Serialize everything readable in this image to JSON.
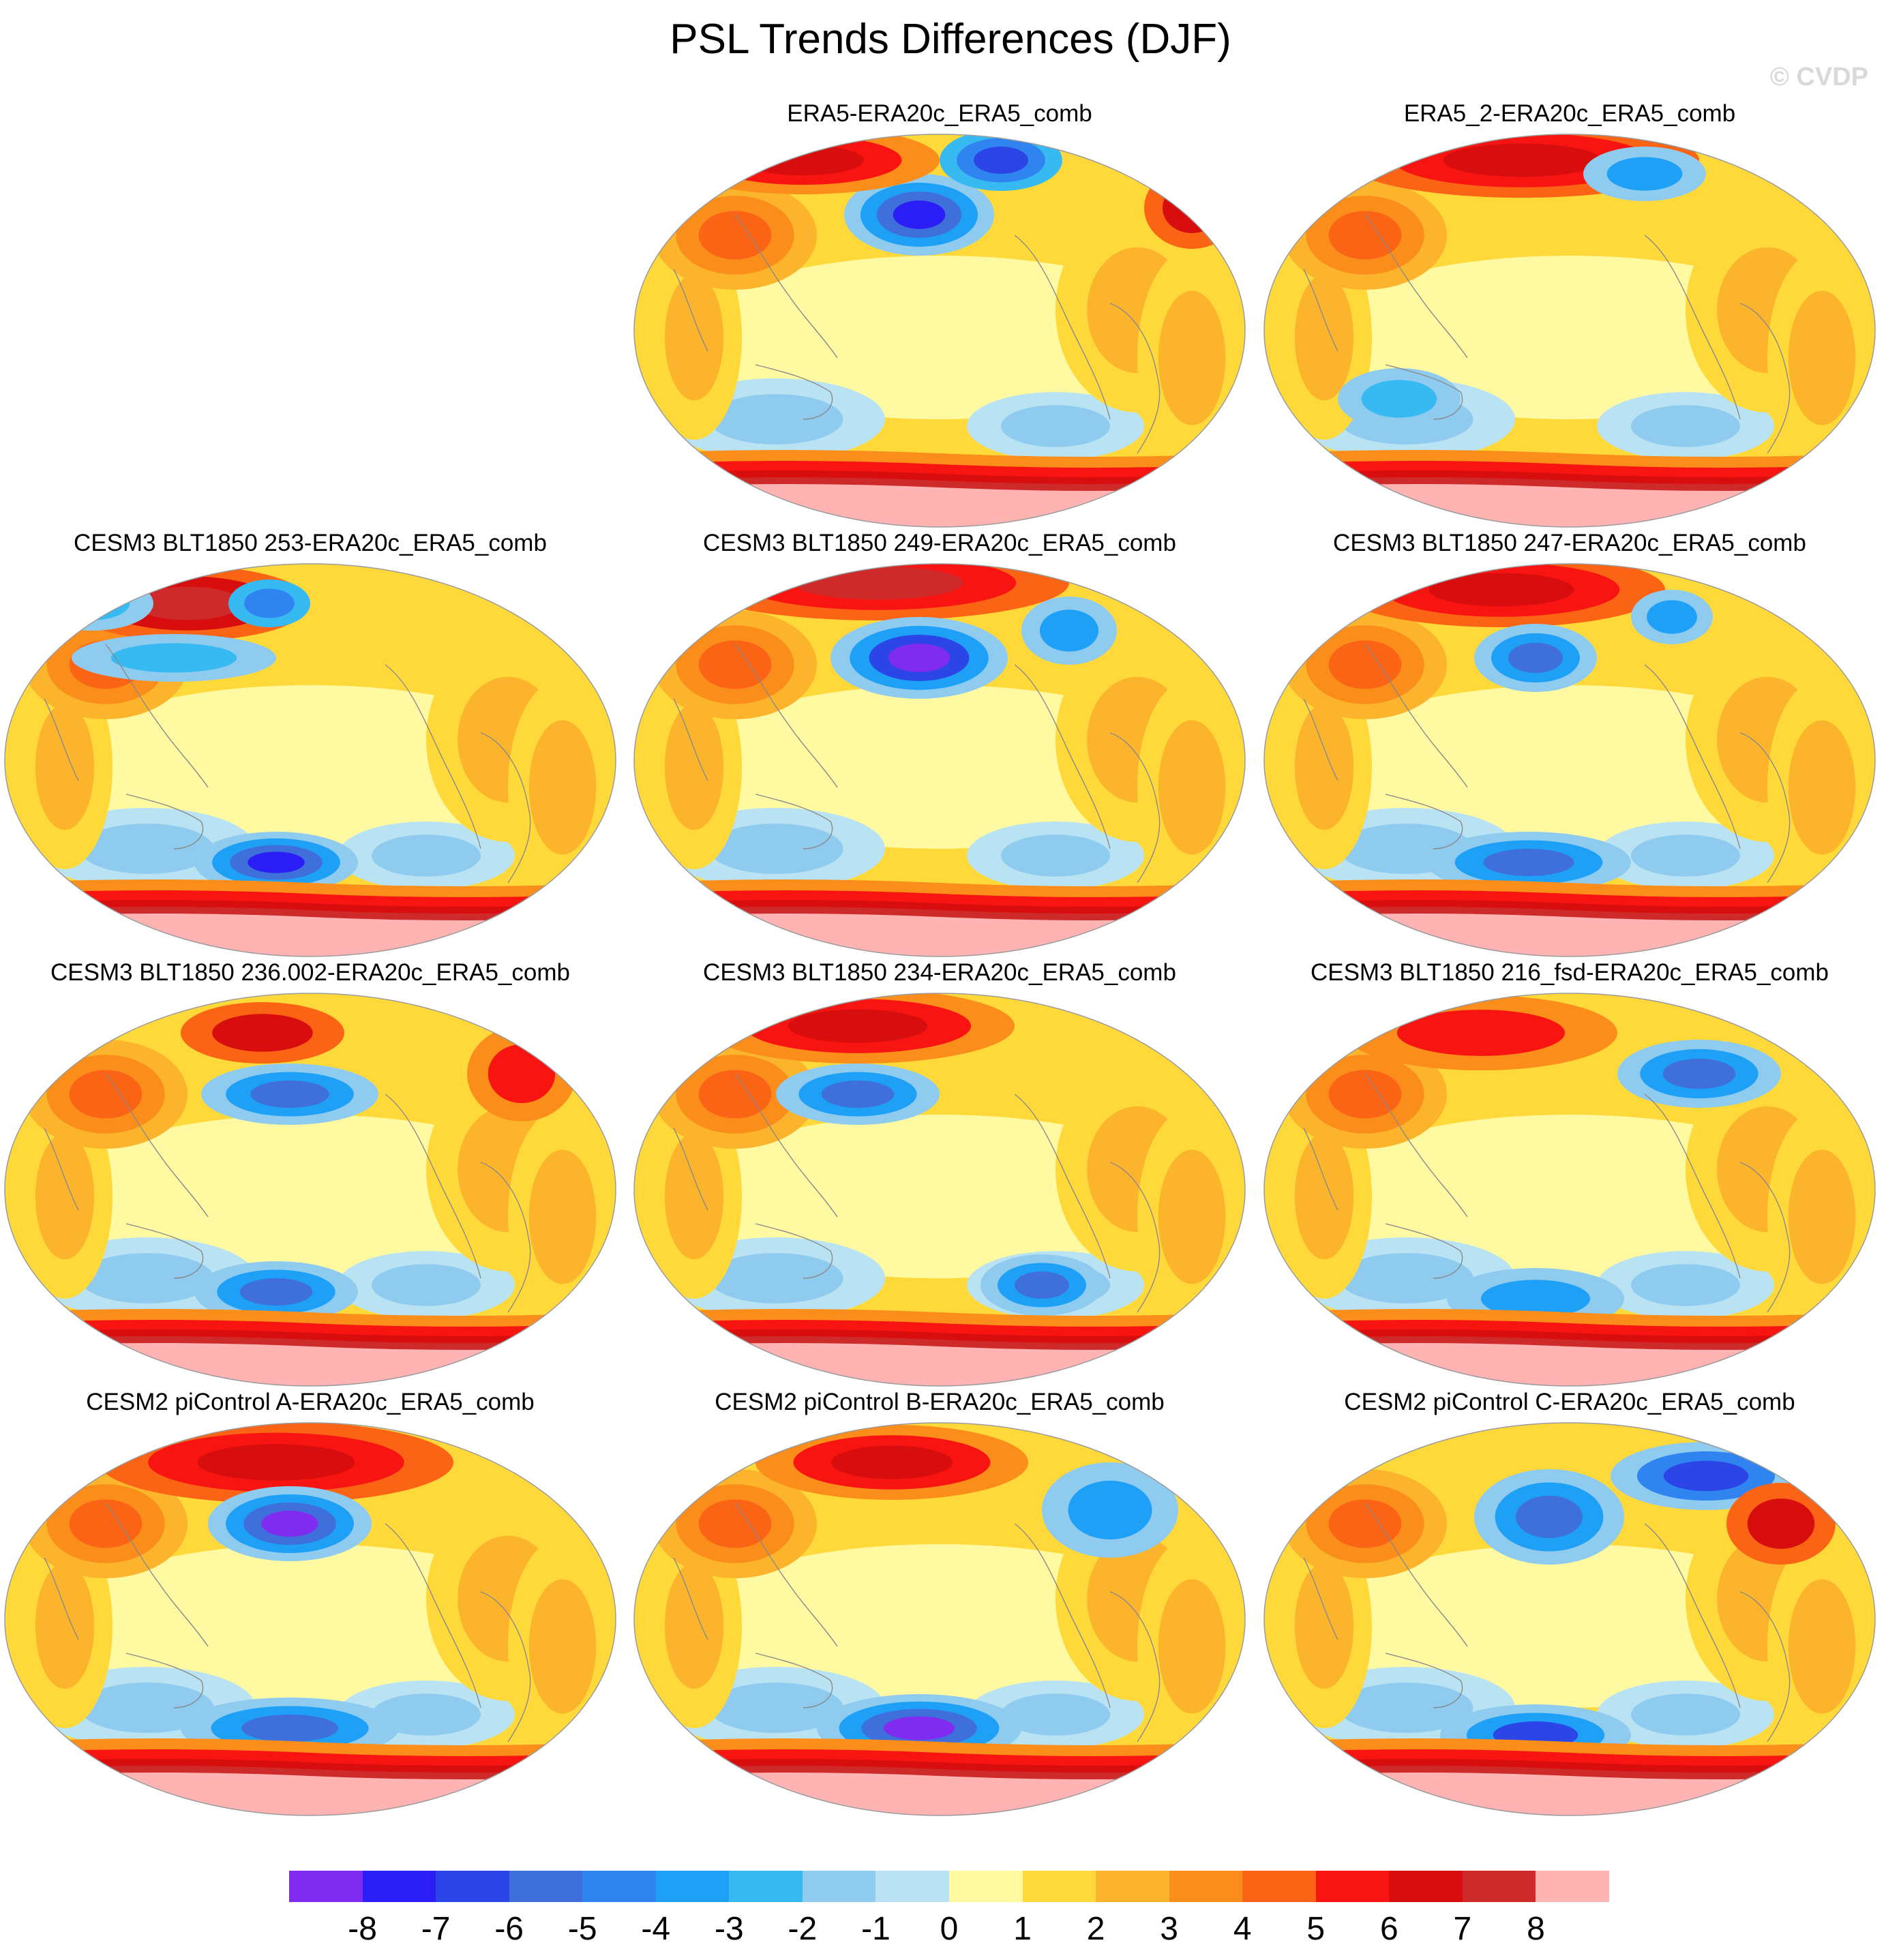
{
  "title": "PSL Trends Differences (DJF)",
  "watermark": "© CVDP",
  "colorbar": {
    "colors": [
      "#7f2cf0",
      "#2b1df5",
      "#2b45e6",
      "#3f6fdb",
      "#2f84f0",
      "#1da0f5",
      "#37baf2",
      "#8ecbef",
      "#b9e3f2",
      "#fff9a2",
      "#ffd93a",
      "#fbb42b",
      "#fb8d1a",
      "#fb6414",
      "#f81410",
      "#d80e0e",
      "#cf2a2a",
      "#ffb3b3"
    ],
    "labels": [
      "-8",
      "-7",
      "-6",
      "-5",
      "-4",
      "-3",
      "-2",
      "-1",
      "0",
      "1",
      "2",
      "3",
      "4",
      "5",
      "6",
      "7",
      "8"
    ]
  },
  "panels": [
    {
      "title": "ERA5-ERA20c_ERA5_comb"
    },
    {
      "title": "ERA5_2-ERA20c_ERA5_comb"
    },
    {
      "title": "CESM3 BLT1850 253-ERA20c_ERA5_comb"
    },
    {
      "title": "CESM3 BLT1850 249-ERA20c_ERA5_comb"
    },
    {
      "title": "CESM3 BLT1850 247-ERA20c_ERA5_comb"
    },
    {
      "title": "CESM3 BLT1850 236.002-ERA20c_ERA5_comb"
    },
    {
      "title": "CESM3 BLT1850 234-ERA20c_ERA5_comb"
    },
    {
      "title": "CESM3 BLT1850 216_fsd-ERA20c_ERA5_comb"
    },
    {
      "title": "CESM2 piControl A-ERA20c_ERA5_comb"
    },
    {
      "title": "CESM2 piControl B-ERA20c_ERA5_comb"
    },
    {
      "title": "CESM2 piControl C-ERA20c_ERA5_comb"
    }
  ]
}
